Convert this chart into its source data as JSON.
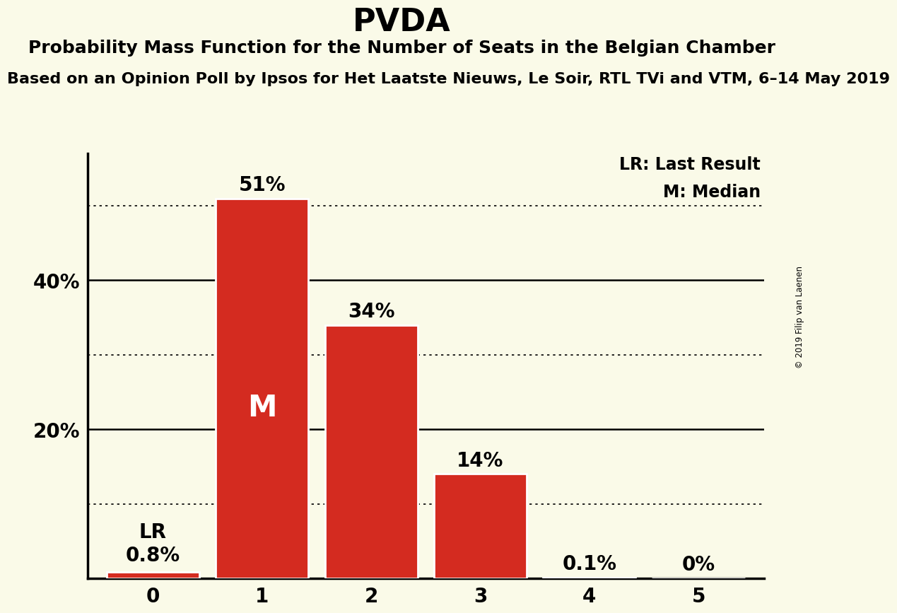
{
  "title": "PVDA",
  "subtitle": "Probability Mass Function for the Number of Seats in the Belgian Chamber",
  "source_line": "Based on an Opinion Poll by Ipsos for Het Laatste Nieuws, Le Soir, RTL TVi and VTM, 6–14 May 2019",
  "copyright": "© 2019 Filip van Laenen",
  "categories": [
    0,
    1,
    2,
    3,
    4,
    5
  ],
  "values": [
    0.8,
    51.0,
    34.0,
    14.0,
    0.1,
    0.0
  ],
  "bar_color": "#d42b20",
  "background_color": "#fafae8",
  "bar_labels": [
    "LR\n0.8%",
    "51%",
    "34%",
    "14%",
    "0.1%",
    "0%"
  ],
  "median_bar": 1,
  "lr_bar": 0,
  "yticks": [
    0,
    10,
    20,
    30,
    40,
    50
  ],
  "ytick_labels": [
    "",
    "",
    "20%",
    "",
    "40%",
    ""
  ],
  "ylim": [
    0,
    57
  ],
  "dotted_lines": [
    10,
    30,
    50
  ],
  "solid_lines": [
    20,
    40
  ],
  "legend_lr": "LR: Last Result",
  "legend_m": "M: Median",
  "title_fontsize": 32,
  "subtitle_fontsize": 18,
  "source_fontsize": 16,
  "label_fontsize": 20,
  "axis_fontsize": 20
}
